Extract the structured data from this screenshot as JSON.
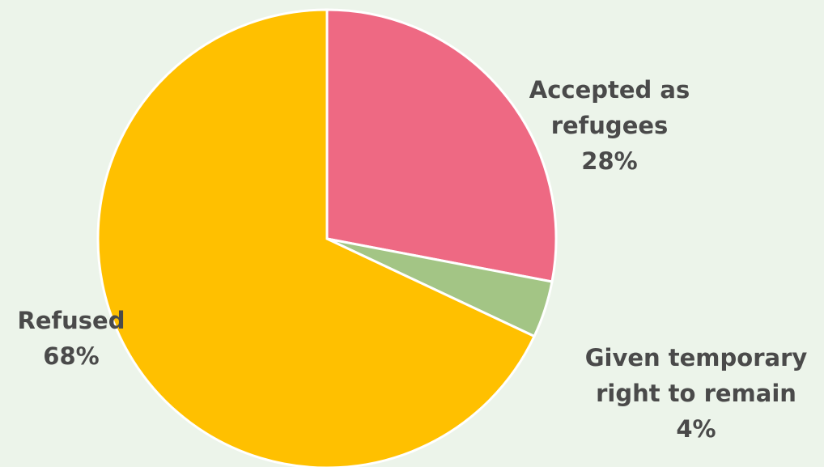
{
  "chart_data": {
    "type": "pie",
    "categories": [
      "Accepted as refugees",
      "Given temporary right to remain",
      "Refused"
    ],
    "values": [
      28,
      4,
      68
    ],
    "value_labels": [
      "28%",
      "4%",
      "68%"
    ],
    "colors": [
      "#ee6983",
      "#a3c585",
      "#ffc000"
    ]
  }
}
